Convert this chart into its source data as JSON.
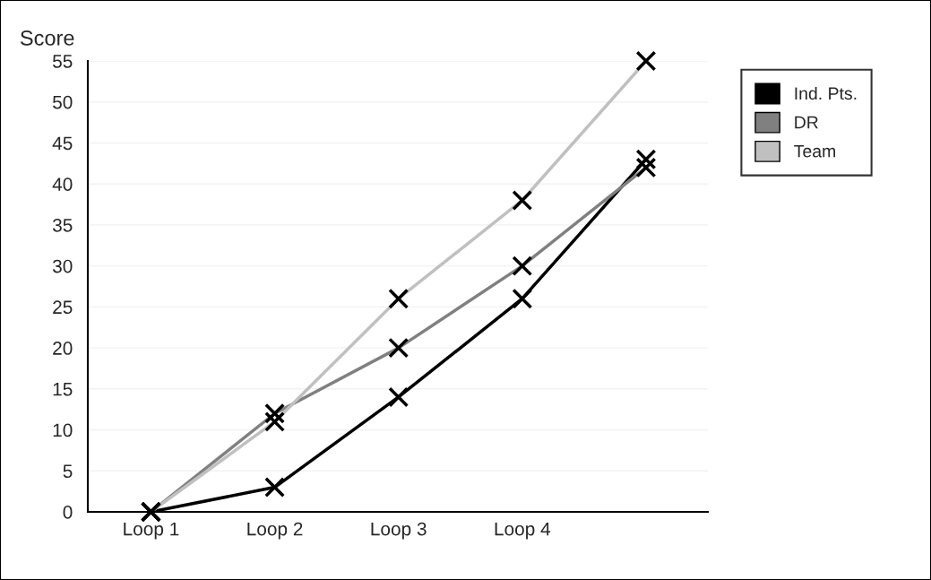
{
  "chart_data": {
    "type": "line",
    "ylabel": "Score",
    "categories": [
      "Loop 1",
      "Loop 2",
      "Loop 3",
      "Loop 4",
      null
    ],
    "series": [
      {
        "name": "Ind. Pts.",
        "color": "#000000",
        "values": [
          0,
          3,
          14,
          26,
          43
        ]
      },
      {
        "name": "DR",
        "color": "#808080",
        "values": [
          0,
          12,
          20,
          30,
          42
        ]
      },
      {
        "name": "Team",
        "color": "#c0c0c0",
        "values": [
          0,
          11,
          26,
          38,
          55
        ]
      }
    ],
    "ylim": [
      0,
      55
    ],
    "yticks": [
      0,
      5,
      10,
      15,
      20,
      25,
      30,
      35,
      40,
      45,
      50,
      55
    ],
    "grid": "y",
    "legend": "top right",
    "marker": "cross",
    "line_style": "solid"
  }
}
